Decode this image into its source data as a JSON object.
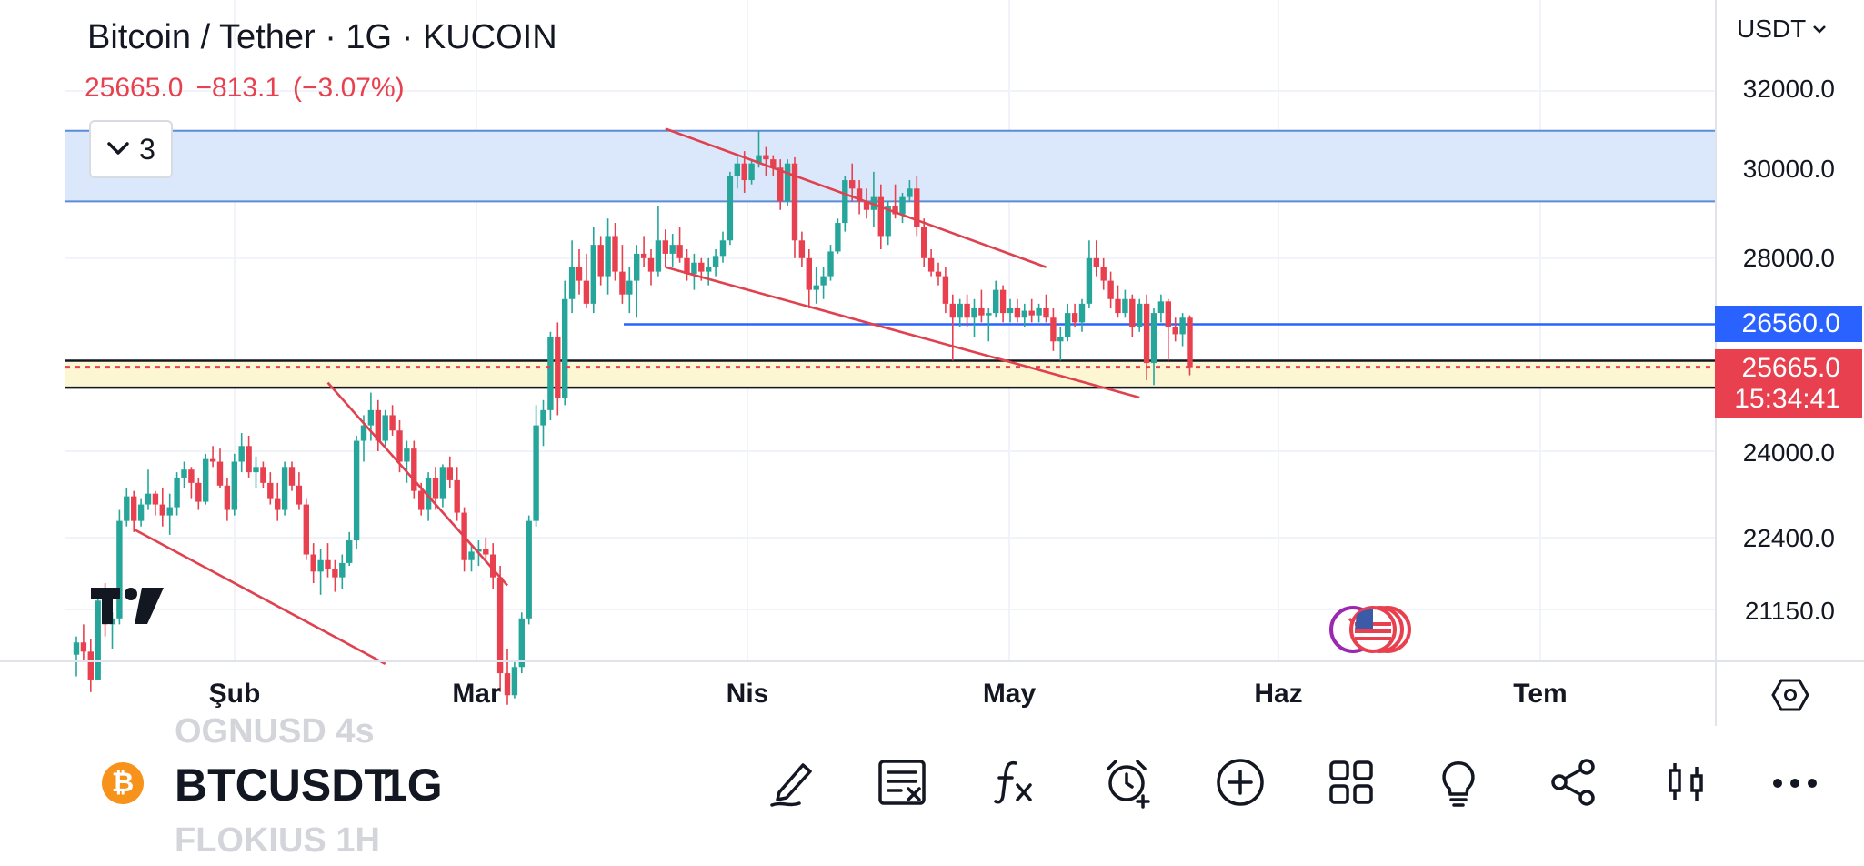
{
  "header": {
    "title": "Bitcoin / Tether · 1G · KUCOIN",
    "last_price": "25665.0",
    "change": "−813.1",
    "change_pct": "(−3.07%)",
    "indicators_count": "3"
  },
  "price_axis": {
    "currency": "USDT",
    "labels": [
      "32000.0",
      "30000.0",
      "28000.0",
      "24000.0",
      "22400.0",
      "21150.0"
    ],
    "current_level_tag": "26560.0",
    "last_price_tag": "25665.0",
    "countdown": "15:34:41"
  },
  "time_axis": {
    "labels": [
      "Şub",
      "Mar",
      "Nis",
      "May",
      "Haz",
      "Tem"
    ]
  },
  "bottom_bar": {
    "prev_symbol": "OGNUSD 4s",
    "symbol": "BTCUSDT",
    "interval": "1G",
    "next_symbol": "FLOKIUS 1H",
    "coin_glyph": "₿",
    "tools": [
      "pencil-icon",
      "watchlist-icon",
      "indicators-fx-icon",
      "alert-clock-icon",
      "add-circle-icon",
      "layouts-grid-icon",
      "ideas-lightbulb-icon",
      "share-icon",
      "chart-type-candles-icon",
      "more-icon"
    ]
  },
  "colors": {
    "up": "#26a69a",
    "down": "#e8404f",
    "resistance_zone": "#dbe8fb",
    "support_zone": "#fdf6d3",
    "trendline": "#e0414f",
    "level_line": "#2962ff"
  },
  "chart_data": {
    "type": "candlestick",
    "symbol": "BTCUSDT",
    "exchange": "KUCOIN",
    "interval": "1G",
    "x_labels": [
      "Şub",
      "Mar",
      "Nis",
      "May",
      "Haz",
      "Tem"
    ],
    "y_ticks": [
      32000,
      30000,
      28000,
      24000,
      22400,
      21150
    ],
    "y_scale": "log",
    "last_price": 25665.0,
    "change": -813.1,
    "change_pct": -3.07,
    "horizontal_level": 26560.0,
    "zones": [
      {
        "name": "resistance",
        "low": 29300,
        "high": 31000
      },
      {
        "name": "support",
        "low": 25250,
        "high": 25800
      }
    ],
    "ohlc": [
      [
        20400,
        20700,
        20050,
        20600
      ],
      [
        20600,
        20900,
        20300,
        20450
      ],
      [
        20450,
        20650,
        19800,
        20000
      ],
      [
        20000,
        21450,
        20000,
        21300
      ],
      [
        21300,
        21600,
        20700,
        20900
      ],
      [
        20900,
        21100,
        20500,
        21000
      ],
      [
        21000,
        22900,
        20900,
        22700
      ],
      [
        22700,
        23300,
        22600,
        23150
      ],
      [
        23150,
        23250,
        22500,
        22700
      ],
      [
        22700,
        23100,
        22600,
        23000
      ],
      [
        23000,
        23650,
        22900,
        23200
      ],
      [
        23200,
        23250,
        22800,
        23000
      ],
      [
        23000,
        23300,
        22600,
        22800
      ],
      [
        22800,
        23200,
        22450,
        22950
      ],
      [
        22950,
        23600,
        22800,
        23500
      ],
      [
        23500,
        23800,
        23300,
        23650
      ],
      [
        23650,
        23700,
        23100,
        23400
      ],
      [
        23400,
        23500,
        22900,
        23050
      ],
      [
        23050,
        23950,
        23000,
        23850
      ],
      [
        23850,
        24100,
        23700,
        23800
      ],
      [
        23800,
        24050,
        23300,
        23350
      ],
      [
        23350,
        23500,
        22700,
        22900
      ],
      [
        22900,
        23950,
        22800,
        23800
      ],
      [
        23800,
        24350,
        23600,
        24100
      ],
      [
        24100,
        24300,
        23500,
        23600
      ],
      [
        23600,
        23900,
        23300,
        23700
      ],
      [
        23700,
        23800,
        23300,
        23400
      ],
      [
        23400,
        23600,
        23000,
        23100
      ],
      [
        23100,
        23400,
        22700,
        22900
      ],
      [
        22900,
        23800,
        22800,
        23700
      ],
      [
        23700,
        23800,
        23250,
        23350
      ],
      [
        23350,
        23600,
        22900,
        23000
      ],
      [
        23000,
        23100,
        22000,
        22100
      ],
      [
        22100,
        22300,
        21600,
        21800
      ],
      [
        21800,
        22200,
        21400,
        22000
      ],
      [
        22000,
        22300,
        21700,
        21850
      ],
      [
        21850,
        22000,
        21450,
        21700
      ],
      [
        21700,
        22100,
        21500,
        21950
      ],
      [
        21950,
        22500,
        21900,
        22350
      ],
      [
        22350,
        24300,
        22200,
        24200
      ],
      [
        24200,
        24700,
        23800,
        24500
      ],
      [
        24500,
        25150,
        24200,
        24800
      ],
      [
        24800,
        25000,
        24000,
        24200
      ],
      [
        24200,
        24800,
        24100,
        24700
      ],
      [
        24700,
        24900,
        24300,
        24400
      ],
      [
        24400,
        24600,
        23600,
        23800
      ],
      [
        23800,
        24200,
        23400,
        24050
      ],
      [
        24050,
        24200,
        23100,
        23250
      ],
      [
        23250,
        23400,
        22800,
        22900
      ],
      [
        22900,
        23600,
        22700,
        23500
      ],
      [
        23500,
        23700,
        22900,
        23100
      ],
      [
        23100,
        23750,
        22950,
        23700
      ],
      [
        23700,
        23900,
        23300,
        23450
      ],
      [
        23450,
        23700,
        22700,
        22850
      ],
      [
        22850,
        22950,
        21800,
        22000
      ],
      [
        22000,
        22250,
        21800,
        22150
      ],
      [
        22150,
        22350,
        21900,
        22200
      ],
      [
        22200,
        22400,
        21950,
        22100
      ],
      [
        22100,
        22300,
        21500,
        21700
      ],
      [
        21700,
        21900,
        19800,
        20100
      ],
      [
        20100,
        20500,
        19600,
        19750
      ],
      [
        19750,
        20300,
        19700,
        20200
      ],
      [
        20200,
        21100,
        20100,
        21000
      ],
      [
        21000,
        22800,
        20900,
        22700
      ],
      [
        22700,
        24900,
        22600,
        24500
      ],
      [
        24500,
        25000,
        24100,
        24800
      ],
      [
        24800,
        26400,
        24600,
        26300
      ],
      [
        26300,
        26600,
        24700,
        25050
      ],
      [
        25050,
        27500,
        24900,
        27100
      ],
      [
        27100,
        28400,
        26800,
        27800
      ],
      [
        27800,
        28200,
        27200,
        27500
      ],
      [
        27500,
        28100,
        26900,
        27000
      ],
      [
        27000,
        28700,
        26800,
        28300
      ],
      [
        28300,
        28500,
        27400,
        27600
      ],
      [
        27600,
        28900,
        27200,
        28500
      ],
      [
        28500,
        28800,
        27500,
        27700
      ],
      [
        27700,
        28300,
        27000,
        27200
      ],
      [
        27200,
        27800,
        26800,
        27500
      ],
      [
        27500,
        28300,
        26700,
        28100
      ],
      [
        28100,
        28500,
        27800,
        28000
      ],
      [
        28000,
        28200,
        27400,
        27700
      ],
      [
        27700,
        29200,
        27600,
        28400
      ],
      [
        28400,
        28650,
        27800,
        28100
      ],
      [
        28100,
        28550,
        27800,
        28300
      ],
      [
        28300,
        28700,
        27900,
        28000
      ],
      [
        28000,
        28200,
        27500,
        27650
      ],
      [
        27650,
        28100,
        27300,
        27900
      ],
      [
        27900,
        28000,
        27500,
        27700
      ],
      [
        27700,
        28000,
        27400,
        27800
      ],
      [
        27800,
        28200,
        27600,
        28050
      ],
      [
        28050,
        28600,
        27900,
        28400
      ],
      [
        28400,
        30000,
        28300,
        29900
      ],
      [
        29900,
        30400,
        29600,
        30200
      ],
      [
        30200,
        30500,
        29500,
        29800
      ],
      [
        29800,
        30300,
        29700,
        30200
      ],
      [
        30200,
        31000,
        30100,
        30400
      ],
      [
        30400,
        30600,
        29900,
        30300
      ],
      [
        30300,
        30400,
        29900,
        30100
      ],
      [
        30100,
        30300,
        29100,
        29300
      ],
      [
        29300,
        30300,
        29200,
        30200
      ],
      [
        30200,
        30350,
        28000,
        28400
      ],
      [
        28400,
        28600,
        27800,
        28000
      ],
      [
        28000,
        28200,
        26900,
        27300
      ],
      [
        27300,
        27800,
        27000,
        27400
      ],
      [
        27400,
        27800,
        27100,
        27600
      ],
      [
        27600,
        28300,
        27500,
        28150
      ],
      [
        28150,
        28900,
        28100,
        28800
      ],
      [
        28800,
        29900,
        28600,
        29800
      ],
      [
        29800,
        30200,
        29300,
        29600
      ],
      [
        29600,
        29800,
        29000,
        29300
      ],
      [
        29300,
        29600,
        28900,
        29100
      ],
      [
        29100,
        30000,
        28700,
        29400
      ],
      [
        29400,
        29700,
        28200,
        28500
      ],
      [
        28500,
        29300,
        28300,
        29200
      ],
      [
        29200,
        29700,
        28900,
        29000
      ],
      [
        29000,
        29500,
        28800,
        29400
      ],
      [
        29400,
        29800,
        29300,
        29600
      ],
      [
        29600,
        29900,
        28500,
        28700
      ],
      [
        28700,
        28900,
        27800,
        28000
      ],
      [
        28000,
        28200,
        27600,
        27700
      ],
      [
        27700,
        27900,
        27400,
        27600
      ],
      [
        27600,
        27800,
        26800,
        27000
      ],
      [
        27000,
        27200,
        25800,
        26700
      ],
      [
        26700,
        27100,
        26500,
        27000
      ],
      [
        27000,
        27200,
        26500,
        26700
      ],
      [
        26700,
        27100,
        26300,
        26900
      ],
      [
        26900,
        27300,
        26600,
        26750
      ],
      [
        26750,
        26900,
        26200,
        26800
      ],
      [
        26800,
        27500,
        26700,
        27300
      ],
      [
        27300,
        27400,
        26600,
        26800
      ],
      [
        26800,
        27100,
        26600,
        26900
      ],
      [
        26900,
        27100,
        26600,
        26700
      ],
      [
        26700,
        27000,
        26500,
        26850
      ],
      [
        26850,
        27100,
        26600,
        26750
      ],
      [
        26750,
        27000,
        26600,
        26900
      ],
      [
        26900,
        27200,
        26600,
        26700
      ],
      [
        26700,
        26900,
        26000,
        26200
      ],
      [
        26200,
        26500,
        25800,
        26300
      ],
      [
        26300,
        27000,
        26200,
        26800
      ],
      [
        26800,
        27000,
        26500,
        26600
      ],
      [
        26600,
        27100,
        26400,
        27000
      ],
      [
        27000,
        28400,
        26900,
        28000
      ],
      [
        28000,
        28400,
        27600,
        27800
      ],
      [
        27800,
        28000,
        27300,
        27500
      ],
      [
        27500,
        27700,
        26900,
        27100
      ],
      [
        27100,
        27400,
        26700,
        26800
      ],
      [
        26800,
        27300,
        26700,
        27100
      ],
      [
        27100,
        27200,
        26300,
        26500
      ],
      [
        26500,
        27100,
        26400,
        27000
      ],
      [
        27000,
        27200,
        25400,
        25750
      ],
      [
        25750,
        26900,
        25300,
        26800
      ],
      [
        26800,
        27200,
        26600,
        27050
      ],
      [
        27050,
        27100,
        25800,
        26500
      ],
      [
        26500,
        26700,
        26200,
        26350
      ],
      [
        26350,
        26800,
        26100,
        26700
      ],
      [
        26700,
        26750,
        25500,
        25665
      ]
    ]
  }
}
